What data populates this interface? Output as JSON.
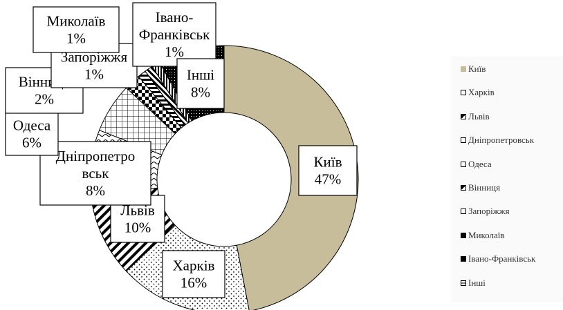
{
  "chart_data": {
    "type": "pie",
    "variant": "doughnut",
    "categories": [
      "Київ",
      "Харків",
      "Львів",
      "Дніпропетровськ",
      "Одеса",
      "Вінниця",
      "Запоріжжя",
      "Миколаїв",
      "Івано-Франківськ",
      "Інші"
    ],
    "values": [
      47,
      16,
      10,
      8,
      6,
      2,
      1,
      1,
      1,
      8
    ],
    "data_labels": [
      [
        "Київ",
        "47%"
      ],
      [
        "Харків",
        "16%"
      ],
      [
        "Львів",
        "10%"
      ],
      [
        "Дніпропетро",
        "вськ",
        "8%"
      ],
      [
        "Одеса",
        "6%"
      ],
      [
        "Вінниця",
        "2%"
      ],
      [
        "Запоріжжя",
        "1%"
      ],
      [
        "Миколаїв",
        "1%"
      ],
      [
        "Івано-",
        "Франківськ",
        "1%"
      ],
      [
        "Інші",
        "8%"
      ]
    ],
    "legend": [
      "Київ",
      "Харків",
      "Львів",
      "Дніпропетровськ",
      "Одеса",
      "Вінниця",
      "Запоріжжя",
      "Миколаїв",
      "Івано-Франківськ",
      "Інші"
    ],
    "legend_position": "right",
    "colors": {
      "kyiv": "#c7bd9a",
      "outline": "#000000",
      "background": "#ffffff",
      "legend_background": "#fafafa"
    }
  }
}
